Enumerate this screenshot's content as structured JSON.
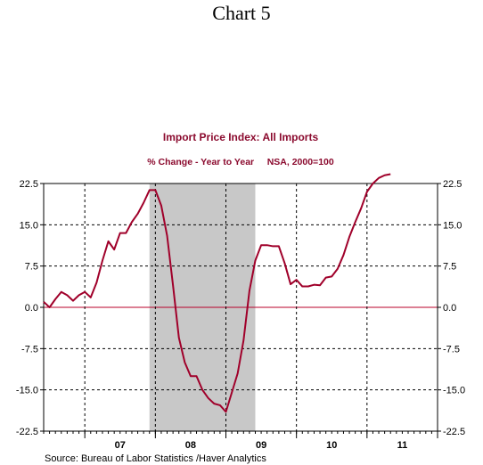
{
  "page_title": "Chart 5",
  "chart_data": {
    "type": "line",
    "title": "Import Price Index: All Imports",
    "subtitle": "% Change - Year to Year     NSA, 2000=100",
    "source": "Source:  Bureau of Labor Statistics /Haver Analytics",
    "x_labels": [
      "07",
      "08",
      "09",
      "10",
      "11"
    ],
    "y_ticks": [
      "22.5",
      "15.0",
      "7.5",
      "0.0",
      "-7.5",
      "-15.0",
      "-22.5"
    ],
    "ylim": [
      -22.5,
      22.5
    ],
    "xlim": [
      "2006-06",
      "2011-12"
    ],
    "recession_shading": {
      "start": "2007-12",
      "end": "2009-06"
    },
    "grid": "dashed vertical at year starts, dashed horizontal at 7.5 intervals",
    "series": [
      {
        "color": "#a0002a",
        "x": [
          "2006-06",
          "2006-07",
          "2006-08",
          "2006-09",
          "2006-10",
          "2006-11",
          "2006-12",
          "2007-01",
          "2007-02",
          "2007-03",
          "2007-04",
          "2007-05",
          "2007-06",
          "2007-07",
          "2007-08",
          "2007-09",
          "2007-10",
          "2007-11",
          "2007-12",
          "2008-01",
          "2008-02",
          "2008-03",
          "2008-04",
          "2008-05",
          "2008-06",
          "2008-07",
          "2008-08",
          "2008-09",
          "2008-10",
          "2008-11",
          "2008-12",
          "2009-01",
          "2009-02",
          "2009-03",
          "2009-04",
          "2009-05",
          "2009-06",
          "2009-07",
          "2009-08",
          "2009-09",
          "2009-10",
          "2009-11",
          "2009-12",
          "2010-01",
          "2010-02",
          "2010-03",
          "2010-04",
          "2010-05",
          "2010-06",
          "2010-07",
          "2010-08",
          "2010-09",
          "2010-10",
          "2010-11",
          "2010-12",
          "2011-01",
          "2011-02",
          "2011-03",
          "2011-04",
          "2011-05"
        ],
        "values": [
          1.0,
          0.0,
          1.5,
          2.8,
          2.2,
          1.2,
          2.2,
          2.8,
          1.8,
          4.5,
          8.5,
          12.0,
          10.5,
          13.5,
          13.5,
          15.5,
          17.0,
          19.0,
          21.3,
          21.3,
          18.5,
          13.0,
          4.0,
          -5.5,
          -10.0,
          -12.5,
          -12.5,
          -15.0,
          -16.5,
          -17.5,
          -17.8,
          -19.0,
          -15.5,
          -12.0,
          -6.0,
          3.0,
          8.5,
          11.3,
          11.3,
          11.1,
          11.1,
          8.0,
          4.2,
          5.0,
          3.8,
          3.8,
          4.1,
          4.0,
          5.4,
          5.6,
          7.0,
          9.5,
          12.8,
          15.5,
          18.0,
          21.0,
          22.5,
          23.5,
          24.0,
          24.2
        ]
      }
    ]
  }
}
